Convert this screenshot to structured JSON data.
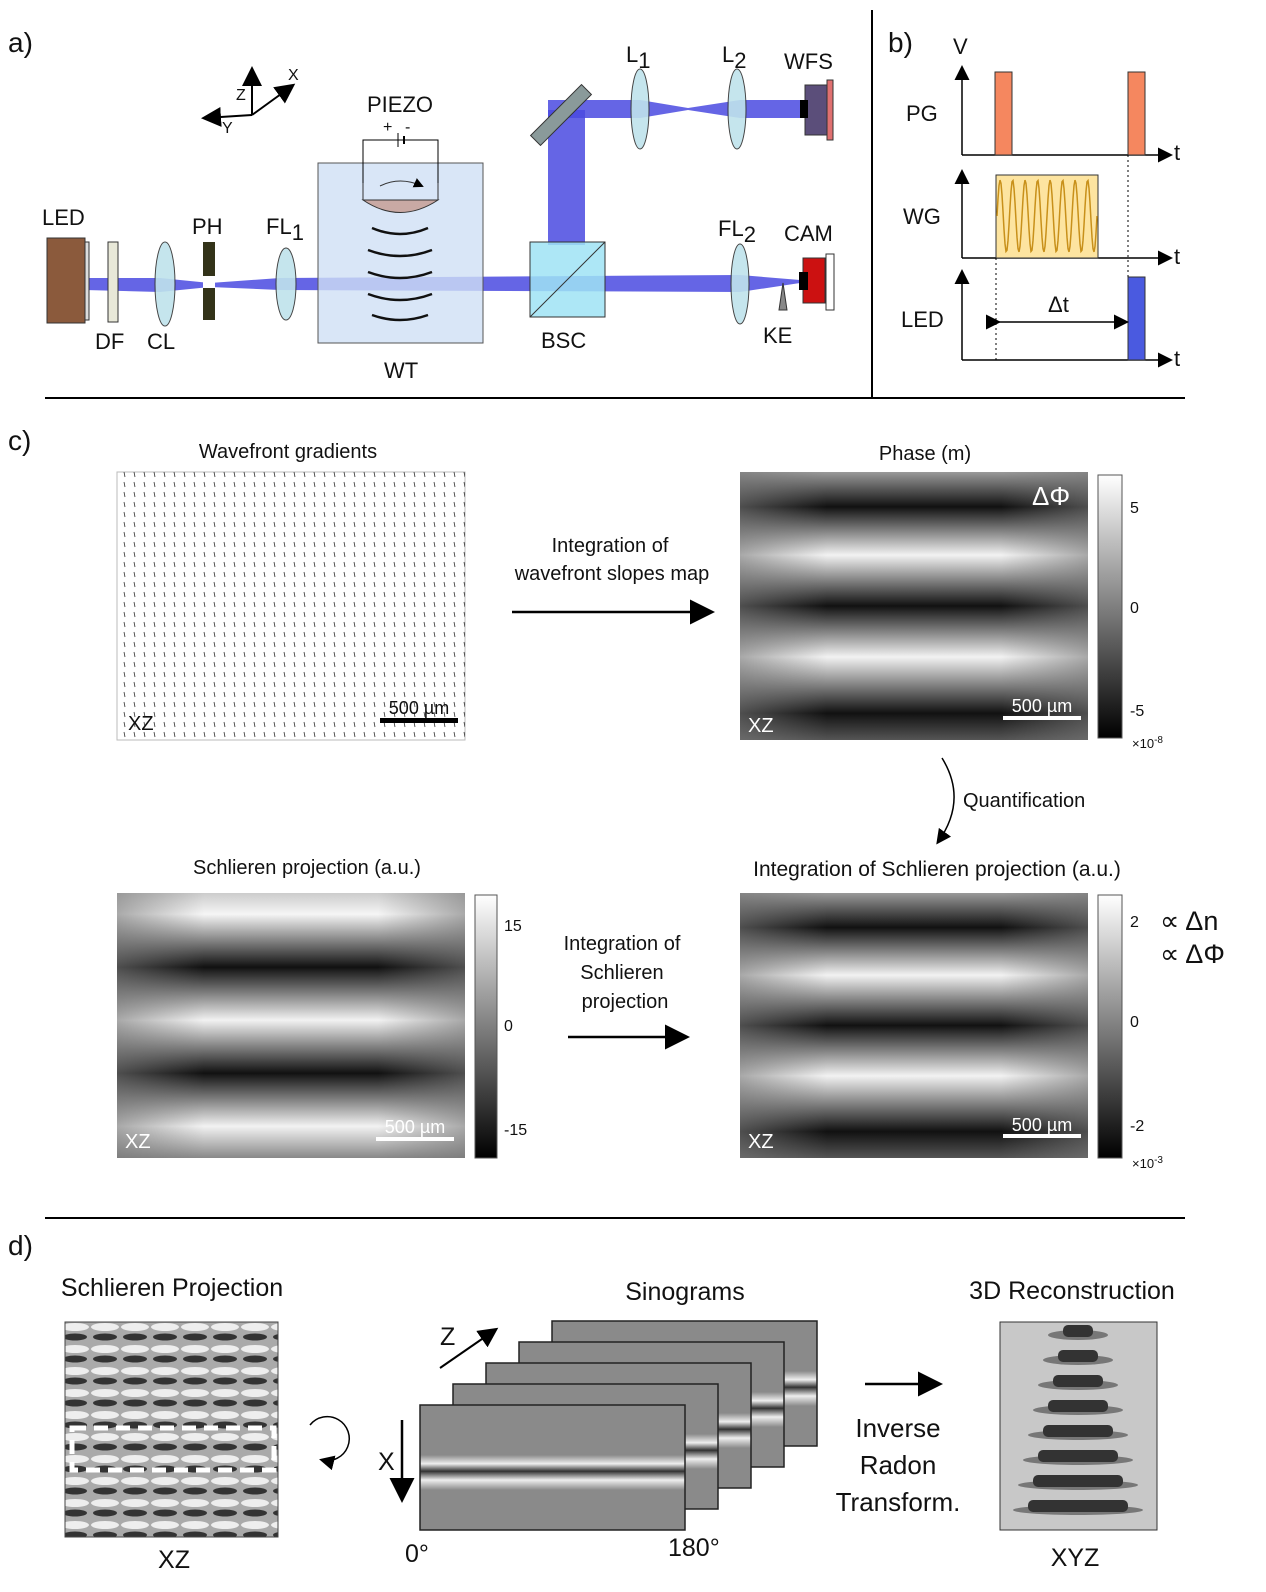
{
  "panel_a": {
    "label": "a)",
    "axes": {
      "z": "Z",
      "x": "X",
      "y": "Y"
    },
    "piezo": "PIEZO",
    "plus": "+",
    "minus": "-",
    "components": {
      "led": "LED",
      "df": "DF",
      "cl": "CL",
      "ph": "PH",
      "fl1": {
        "base": "FL",
        "sub": "1"
      },
      "wt": "WT",
      "bsc": "BSC",
      "l1": {
        "base": "L",
        "sub": "1"
      },
      "l2": {
        "base": "L",
        "sub": "2"
      },
      "wfs": "WFS",
      "fl2": {
        "base": "FL",
        "sub": "2"
      },
      "cam": "CAM",
      "ke": "KE"
    }
  },
  "panel_b": {
    "label": "b)",
    "v": "V",
    "rows": [
      "PG",
      "WG",
      "LED"
    ],
    "t": "t",
    "dt": "Δt"
  },
  "panel_c": {
    "label": "c)",
    "wavefront": {
      "title": "Wavefront gradients",
      "scale": "500 µm",
      "plane": "XZ"
    },
    "phase": {
      "title": "Phase (m)",
      "symbol": "ΔΦ",
      "scale": "500 µm",
      "plane": "XZ",
      "ticks": [
        "5",
        "0",
        "-5"
      ],
      "multiplier": {
        "base": "×10",
        "exp": "-8"
      }
    },
    "arrow1": [
      "Integration of",
      "wavefront slopes map"
    ],
    "quantification": "Quantification",
    "schlieren": {
      "title": "Schlieren projection (a.u.)",
      "scale": "500 µm",
      "plane": "XZ",
      "ticks": [
        "15",
        "0",
        "-15"
      ]
    },
    "arrow2": [
      "Integration of",
      "Schlieren",
      "projection"
    ],
    "integrated": {
      "title": "Integration of Schlieren projection (a.u.)",
      "scale": "500 µm",
      "plane": "XZ",
      "ticks": [
        "2",
        "0",
        "-2"
      ],
      "multiplier": {
        "base": "×10",
        "exp": "-3"
      },
      "notes": [
        "∝ Δn",
        "∝ ΔΦ"
      ]
    }
  },
  "panel_d": {
    "label": "d)",
    "projection": {
      "title": "Schlieren Projection",
      "plane": "XZ"
    },
    "sinograms": {
      "title": "Sinograms",
      "z": "Z",
      "x": "X",
      "start": "0°",
      "end": "180°"
    },
    "transform": [
      "Inverse",
      "Radon",
      "Transform."
    ],
    "reconstruction": {
      "title": "3D Reconstruction",
      "plane": "XYZ"
    }
  }
}
